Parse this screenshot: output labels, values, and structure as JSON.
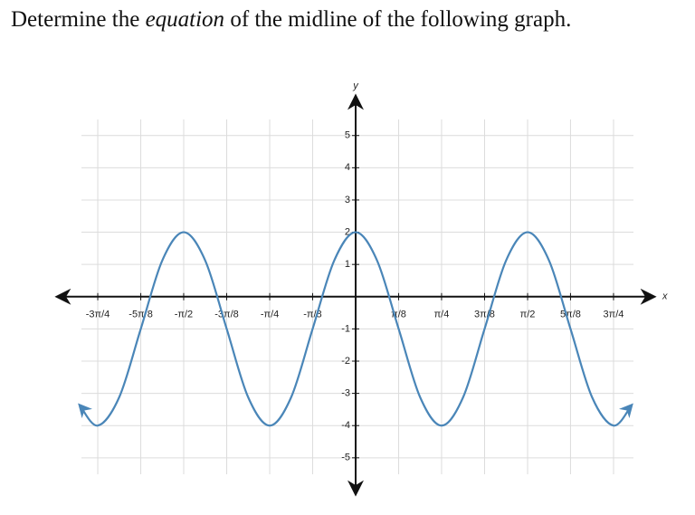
{
  "question": {
    "before": "Determine the ",
    "emphasis": "equation",
    "after": " of the midline of the following graph."
  },
  "chart_data": {
    "type": "line",
    "x_label": "x",
    "y_label": "y",
    "x": [
      -2.52,
      -2.356,
      -2.16,
      -1.963,
      -1.767,
      -1.571,
      -1.374,
      -1.178,
      -0.982,
      -0.785,
      -0.589,
      -0.393,
      -0.196,
      0,
      0.196,
      0.393,
      0.589,
      0.785,
      0.982,
      1.178,
      1.374,
      1.571,
      1.767,
      1.963,
      2.16,
      2.356,
      2.52
    ],
    "series": [
      {
        "color": "#4a86b8",
        "values": [
          -3.37,
          -4,
          -3.12,
          -1,
          1.12,
          2,
          1.12,
          -1,
          -3.12,
          -4,
          -3.12,
          -1,
          1.12,
          2,
          1.12,
          -1,
          -3.12,
          -4,
          -3.12,
          -1,
          1.12,
          2,
          1.12,
          -1,
          -3.12,
          -4,
          -3.37
        ]
      }
    ],
    "xlim": [
      -2.72,
      2.72
    ],
    "ylim": [
      -6.1,
      6.2
    ],
    "xticks": [
      {
        "value": -2.356,
        "label": "-3π/4"
      },
      {
        "value": -1.963,
        "label": "-5π/8"
      },
      {
        "value": -1.571,
        "label": "-π/2"
      },
      {
        "value": -1.178,
        "label": "-3π/8"
      },
      {
        "value": -0.785,
        "label": "-π/4"
      },
      {
        "value": -0.393,
        "label": "-π/8"
      },
      {
        "value": 0.393,
        "label": "π/8"
      },
      {
        "value": 0.785,
        "label": "π/4"
      },
      {
        "value": 1.178,
        "label": "3π/8"
      },
      {
        "value": 1.571,
        "label": "π/2"
      },
      {
        "value": 1.963,
        "label": "5π/8"
      },
      {
        "value": 2.356,
        "label": "3π/4"
      }
    ],
    "yticks": [
      -5,
      -4,
      -3,
      -2,
      -1,
      1,
      2,
      3,
      4,
      5
    ],
    "grid": true
  }
}
